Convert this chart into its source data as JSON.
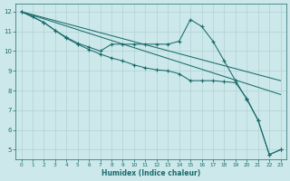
{
  "bg_color": "#cce8ea",
  "grid_color_major": "#aacccc",
  "grid_color_minor": "#bbdddd",
  "line_color": "#1a6b6b",
  "xlabel": "Humidex (Indice chaleur)",
  "xlim": [
    -0.5,
    23.5
  ],
  "ylim": [
    4.5,
    12.4
  ],
  "yticks": [
    5,
    6,
    7,
    8,
    9,
    10,
    11,
    12
  ],
  "xticks": [
    0,
    1,
    2,
    3,
    4,
    5,
    6,
    7,
    8,
    9,
    10,
    11,
    12,
    13,
    14,
    15,
    16,
    17,
    18,
    19,
    20,
    21,
    22,
    23
  ],
  "line_straight": {
    "x": [
      0,
      23
    ],
    "y": [
      12.0,
      7.8
    ]
  },
  "line_mid_straight": {
    "x": [
      0,
      23
    ],
    "y": [
      12.0,
      8.5
    ]
  },
  "line_peaked_upper": {
    "comment": "Line with markers: starts (0,12), goes to (1,11.75), (2,11.45), (3,11.05), (4,10.7), (5,10.4), (6,10.2), (7,10.0), (8,10.35), (9,10.35), (10,10.35), (11,10.35), (12,10.35), (13,10.35), (14,10.5), (15,11.6), (16,11.25), (17,10.5), (18,9.5), (19,8.5), (20,7.55), (21,6.5), (22,4.75), (23,5.0)",
    "x": [
      0,
      1,
      2,
      3,
      4,
      5,
      6,
      7,
      8,
      9,
      10,
      11,
      12,
      13,
      14,
      15,
      16,
      17,
      18,
      19,
      20,
      21,
      22,
      23
    ],
    "y": [
      12.0,
      11.75,
      11.45,
      11.05,
      10.7,
      10.4,
      10.2,
      10.0,
      10.35,
      10.35,
      10.35,
      10.35,
      10.35,
      10.35,
      10.5,
      11.6,
      11.25,
      10.5,
      9.5,
      8.5,
      7.55,
      6.5,
      4.75,
      5.0
    ]
  },
  "line_peaked_lower": {
    "comment": "Second peaked line with markers: starts (0,12), (2,11.45),(3,11.05),(4,10.65),(5,10.35),(6,10.08),(7,9.85),(8,9.65),(9,9.5),(10,9.3),(11,9.15),(12,9.05),(13,9.0),(14,8.85),(15,8.5),(16,8.5),(17,8.5),(18,8.45),(19,8.4),(20,7.6),(21,6.5),(22,4.75),(23,5.0)",
    "x": [
      0,
      2,
      3,
      4,
      5,
      6,
      7,
      8,
      9,
      10,
      11,
      12,
      13,
      14,
      15,
      16,
      17,
      18,
      19,
      20,
      21,
      22,
      23
    ],
    "y": [
      12.0,
      11.45,
      11.05,
      10.65,
      10.35,
      10.08,
      9.85,
      9.65,
      9.5,
      9.3,
      9.15,
      9.05,
      9.0,
      8.85,
      8.5,
      8.5,
      8.5,
      8.45,
      8.4,
      7.6,
      6.5,
      4.75,
      5.0
    ]
  }
}
